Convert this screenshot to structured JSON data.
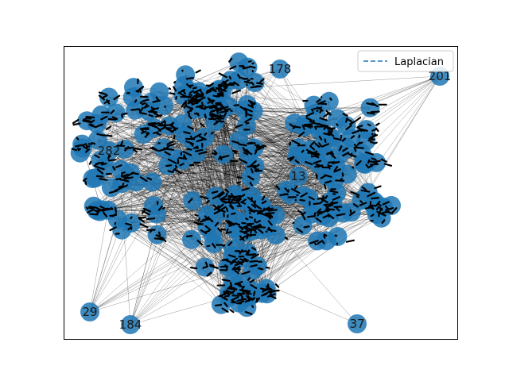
{
  "legend": {
    "label": "Laplacian",
    "placement": "top-right",
    "line_color": "#1f77b4",
    "line_style": "dashed"
  },
  "graph": {
    "node_color": "#1f77b4",
    "edge_color": "#000000",
    "visible_labels": [
      "201",
      "282",
      "29",
      "184",
      "37",
      "178",
      "13"
    ]
  }
}
